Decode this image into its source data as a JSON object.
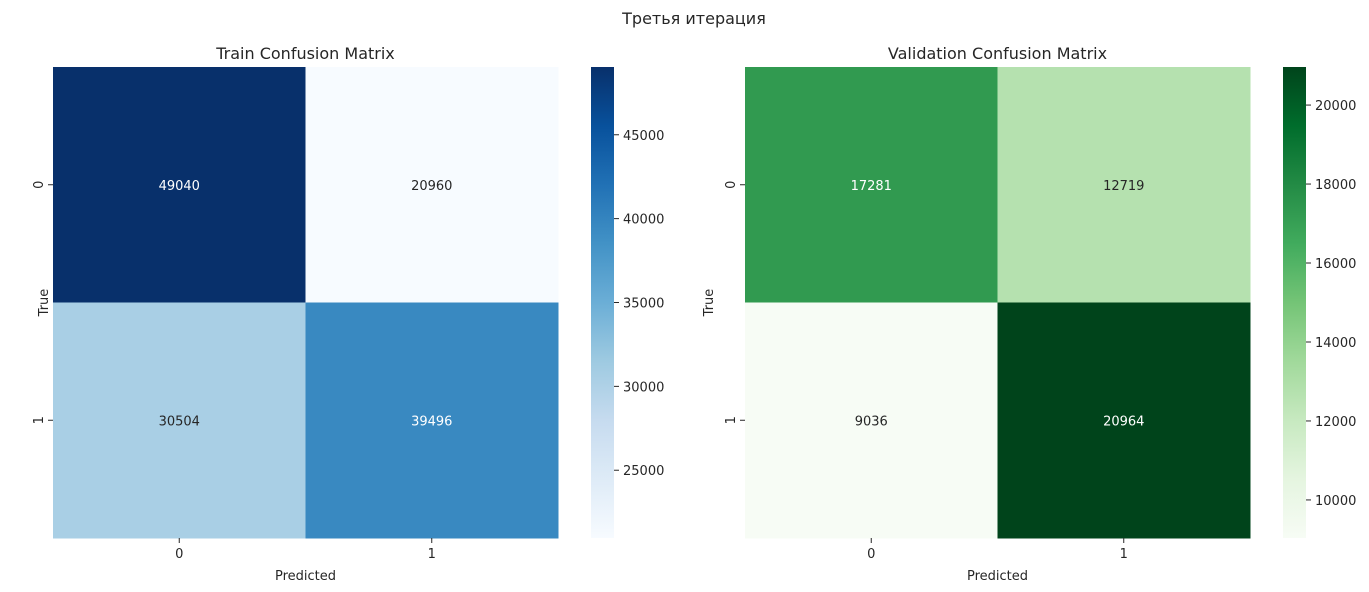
{
  "suptitle": "Третья итерация",
  "chart_data": [
    {
      "type": "heatmap",
      "title": "Train Confusion Matrix",
      "xlabel": "Predicted",
      "ylabel": "True",
      "x_categories": [
        "0",
        "1"
      ],
      "y_categories": [
        "0",
        "1"
      ],
      "values": [
        [
          49040,
          20960
        ],
        [
          30504,
          39496
        ]
      ],
      "colormap": "Blues",
      "colormap_stops": [
        "#f7fbff",
        "#deebf7",
        "#c6dbef",
        "#9ecae1",
        "#6baed6",
        "#4292c6",
        "#2171b5",
        "#08519c",
        "#08306b"
      ],
      "colorbar_range": [
        20960,
        49040
      ],
      "colorbar_ticks": [
        25000,
        30000,
        35000,
        40000,
        45000
      ]
    },
    {
      "type": "heatmap",
      "title": "Validation Confusion Matrix",
      "xlabel": "Predicted",
      "ylabel": "True",
      "x_categories": [
        "0",
        "1"
      ],
      "y_categories": [
        "0",
        "1"
      ],
      "values": [
        [
          17281,
          12719
        ],
        [
          9036,
          20964
        ]
      ],
      "colormap": "Greens",
      "colormap_stops": [
        "#f7fcf5",
        "#e5f5e0",
        "#c7e9c0",
        "#a1d99b",
        "#74c476",
        "#41ab5d",
        "#238b45",
        "#006d2c",
        "#00441b"
      ],
      "colorbar_range": [
        9036,
        20964
      ],
      "colorbar_ticks": [
        10000,
        12000,
        14000,
        16000,
        18000,
        20000
      ]
    }
  ]
}
